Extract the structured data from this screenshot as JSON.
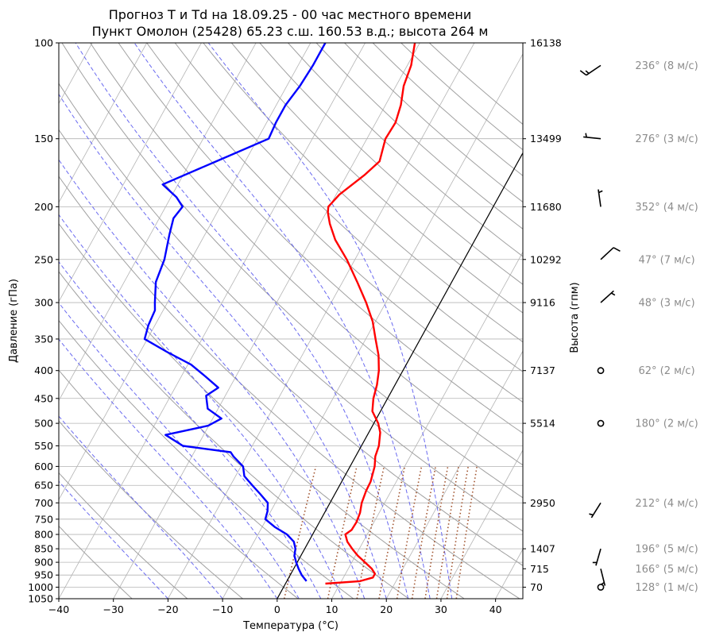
{
  "chart_data": {
    "type": "line",
    "diagram": "skew-T log-p",
    "title_line1": "Прогноз T и Td на 18.09.25 - 00 час местного времени",
    "title_line2": "Пункт Омолон (25428) 65.23 с.ш. 160.53 в.д.; высота 264 м",
    "xlabel": "Температура (°C)",
    "ylabel": "Давление (гПа)",
    "ylabel_right": "Высота (гпм)",
    "xlim": [
      -40,
      45
    ],
    "ylim": [
      1050,
      100
    ],
    "y_scale": "log",
    "grid": true,
    "x_ticks": [
      -40,
      -30,
      -20,
      -10,
      0,
      10,
      20,
      30,
      40
    ],
    "x_tick_labels": [
      "−40",
      "−30",
      "−20",
      "−10",
      "0",
      "10",
      "20",
      "30",
      "40"
    ],
    "pressure_ticks": [
      100,
      150,
      200,
      250,
      300,
      350,
      400,
      450,
      500,
      550,
      600,
      650,
      700,
      750,
      800,
      850,
      900,
      950,
      1000,
      1050
    ],
    "pressure_tick_labels": [
      "100",
      "150",
      "200",
      "250",
      "300",
      "350",
      "400",
      "450",
      "500",
      "550",
      "600",
      "650",
      "700",
      "750",
      "800",
      "850",
      "900",
      "950",
      "1000",
      "1050"
    ],
    "heights": [
      {
        "p": 100,
        "label": "16138"
      },
      {
        "p": 150,
        "label": "13499"
      },
      {
        "p": 200,
        "label": "11680"
      },
      {
        "p": 250,
        "label": "10292"
      },
      {
        "p": 300,
        "label": "9116"
      },
      {
        "p": 400,
        "label": "7137"
      },
      {
        "p": 500,
        "label": "5514"
      },
      {
        "p": 700,
        "label": "2950"
      },
      {
        "p": 850,
        "label": "1407"
      },
      {
        "p": 925,
        "label": "715"
      },
      {
        "p": 1000,
        "label": "70"
      }
    ],
    "series": [
      {
        "key": "temperature",
        "color": "#ff0000",
        "points": [
          [
            985,
            7.3
          ],
          [
            975,
            13.4
          ],
          [
            960,
            15.4
          ],
          [
            945,
            15.4
          ],
          [
            925,
            14.3
          ],
          [
            900,
            12.4
          ],
          [
            875,
            10.4
          ],
          [
            850,
            8.7
          ],
          [
            825,
            7.1
          ],
          [
            800,
            6.0
          ],
          [
            785,
            6.7
          ],
          [
            760,
            6.8
          ],
          [
            730,
            6.5
          ],
          [
            700,
            5.8
          ],
          [
            665,
            5.4
          ],
          [
            640,
            5.3
          ],
          [
            600,
            4.5
          ],
          [
            575,
            3.6
          ],
          [
            550,
            3.2
          ],
          [
            520,
            2.1
          ],
          [
            500,
            0.8
          ],
          [
            475,
            -1.5
          ],
          [
            450,
            -2.6
          ],
          [
            425,
            -3.3
          ],
          [
            400,
            -4.4
          ],
          [
            375,
            -6.0
          ],
          [
            350,
            -8.2
          ],
          [
            325,
            -10.5
          ],
          [
            300,
            -13.6
          ],
          [
            275,
            -17.3
          ],
          [
            250,
            -21.5
          ],
          [
            230,
            -25.6
          ],
          [
            215,
            -28.2
          ],
          [
            205,
            -29.7
          ],
          [
            200,
            -30.2
          ],
          [
            190,
            -29.4
          ],
          [
            175,
            -26.8
          ],
          [
            165,
            -25.4
          ],
          [
            150,
            -26.6
          ],
          [
            140,
            -26.4
          ],
          [
            130,
            -27.2
          ],
          [
            120,
            -28.6
          ],
          [
            110,
            -29.3
          ],
          [
            100,
            -30.9
          ]
        ]
      },
      {
        "key": "dewpoint",
        "color": "#0000ff",
        "points": [
          [
            975,
            3.6
          ],
          [
            950,
            2.1
          ],
          [
            925,
            0.9
          ],
          [
            900,
            -0.2
          ],
          [
            875,
            -1.2
          ],
          [
            850,
            -1.7
          ],
          [
            825,
            -2.7
          ],
          [
            800,
            -4.7
          ],
          [
            775,
            -7.7
          ],
          [
            750,
            -10.2
          ],
          [
            725,
            -10.6
          ],
          [
            700,
            -11.4
          ],
          [
            675,
            -13.6
          ],
          [
            650,
            -16.0
          ],
          [
            625,
            -18.4
          ],
          [
            600,
            -19.6
          ],
          [
            575,
            -22.4
          ],
          [
            565,
            -23.3
          ],
          [
            550,
            -32.7
          ],
          [
            525,
            -37.0
          ],
          [
            505,
            -30.1
          ],
          [
            490,
            -28.4
          ],
          [
            470,
            -31.9
          ],
          [
            445,
            -33.5
          ],
          [
            430,
            -32.1
          ],
          [
            410,
            -35.6
          ],
          [
            390,
            -39.4
          ],
          [
            370,
            -45.0
          ],
          [
            350,
            -50.5
          ],
          [
            330,
            -51.2
          ],
          [
            310,
            -51.5
          ],
          [
            300,
            -52.3
          ],
          [
            275,
            -54.2
          ],
          [
            250,
            -54.9
          ],
          [
            225,
            -56.5
          ],
          [
            210,
            -57.4
          ],
          [
            200,
            -56.9
          ],
          [
            192,
            -59.0
          ],
          [
            182,
            -62.8
          ],
          [
            165,
            -55.3
          ],
          [
            150,
            -48.0
          ],
          [
            140,
            -48.3
          ],
          [
            130,
            -48.3
          ],
          [
            120,
            -47.6
          ],
          [
            110,
            -47.3
          ],
          [
            100,
            -47.3
          ]
        ]
      }
    ],
    "winds": [
      {
        "p": 110,
        "label": "236° (8 м/с)",
        "dir": 236,
        "speed": 8
      },
      {
        "p": 150,
        "label": "276° (3 м/с)",
        "dir": 276,
        "speed": 3
      },
      {
        "p": 200,
        "label": "352° (4 м/с)",
        "dir": 352,
        "speed": 4
      },
      {
        "p": 250,
        "label": "47° (7 м/с)",
        "dir": 47,
        "speed": 7
      },
      {
        "p": 300,
        "label": "48° (3 м/с)",
        "dir": 48,
        "speed": 3
      },
      {
        "p": 400,
        "label": "62° (2 м/с)",
        "dir": 62,
        "speed": 2
      },
      {
        "p": 500,
        "label": "180° (2 м/с)",
        "dir": 180,
        "speed": 2
      },
      {
        "p": 700,
        "label": "212° (4 м/с)",
        "dir": 212,
        "speed": 4
      },
      {
        "p": 850,
        "label": "196° (5 м/с)",
        "dir": 196,
        "speed": 5
      },
      {
        "p": 925,
        "label": "166° (5 м/с)",
        "dir": 166,
        "speed": 5
      },
      {
        "p": 1000,
        "label": "128° (1 м/с)",
        "dir": 128,
        "speed": 1
      }
    ],
    "background_lines": {
      "isotherm_color": "#000000",
      "dry_adiabat_color": "#a0a0a0",
      "moist_adiabat_color": "#6a6af0",
      "mixing_ratio_color": "#a0522d",
      "grid_color": "#b4b4b4"
    }
  }
}
